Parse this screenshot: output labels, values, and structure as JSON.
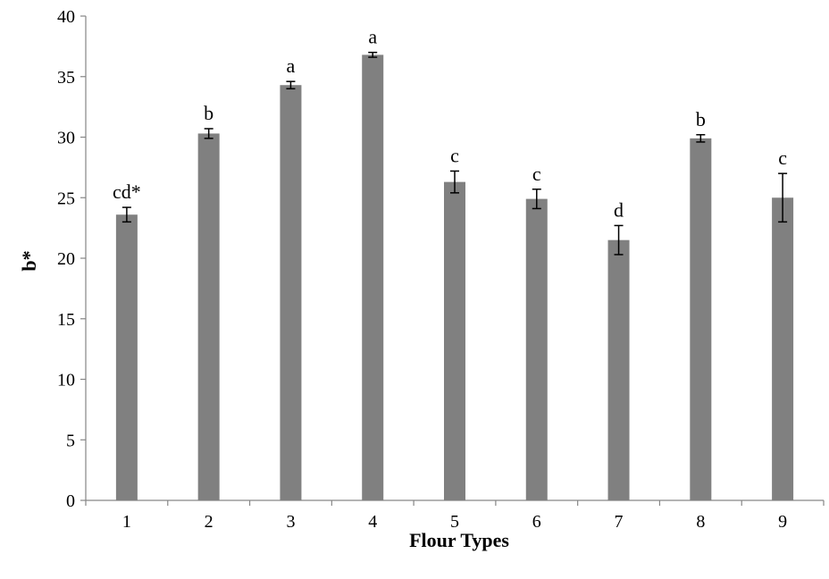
{
  "chart_data": {
    "type": "bar",
    "title": "",
    "xlabel": "Flour Types",
    "ylabel": "b*",
    "ylim": [
      0,
      40
    ],
    "yticks": [
      0,
      5,
      10,
      15,
      20,
      25,
      30,
      35,
      40
    ],
    "ytick_labels": [
      "0",
      "5",
      "10",
      "15",
      "20",
      "25",
      "30",
      "35",
      "40"
    ],
    "grid": false,
    "legend": "none",
    "categories": [
      "1",
      "2",
      "3",
      "4",
      "5",
      "6",
      "7",
      "8",
      "9"
    ],
    "values": [
      23.6,
      30.3,
      34.3,
      36.8,
      26.3,
      24.9,
      21.5,
      29.9,
      25.0
    ],
    "errors": [
      0.6,
      0.4,
      0.3,
      0.2,
      0.9,
      0.8,
      1.2,
      0.3,
      2.0
    ],
    "labels": [
      "cd*",
      "b",
      "a",
      "a",
      "c",
      "c",
      "d",
      "b",
      "c"
    ],
    "bar_color": "#808080",
    "axis_color": "#868686"
  }
}
